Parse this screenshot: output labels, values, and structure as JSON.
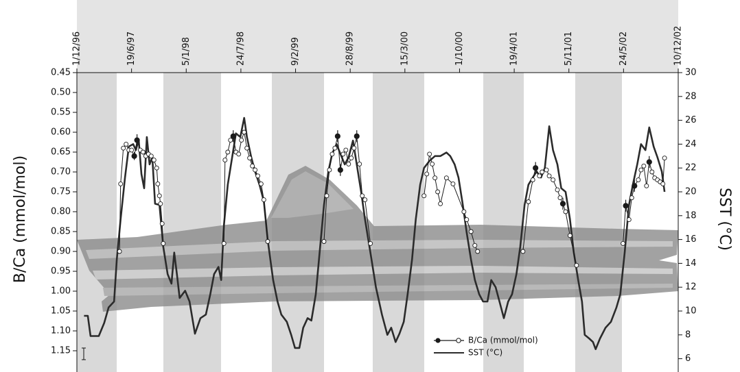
{
  "chart_data": {
    "type": "line",
    "x_axis_position": "top",
    "xlim": [
      0,
      11
    ],
    "xticks": [
      {
        "value": 0,
        "label": "1/12/96"
      },
      {
        "value": 1,
        "label": "19/6/97"
      },
      {
        "value": 2,
        "label": "5/1/98"
      },
      {
        "value": 3,
        "label": "24/7/98"
      },
      {
        "value": 4,
        "label": "9/2/99"
      },
      {
        "value": 5,
        "label": "28/8/99"
      },
      {
        "value": 6,
        "label": "15/3/00"
      },
      {
        "value": 7,
        "label": "1/10/00"
      },
      {
        "value": 8,
        "label": "19/4/01"
      },
      {
        "value": 9,
        "label": "5/11/01"
      },
      {
        "value": 10,
        "label": "24/5/02"
      },
      {
        "value": 11,
        "label": "10/12/02"
      }
    ],
    "ylabel": "B/Ca (mmol/mol)",
    "ylim": [
      1.2,
      0.45
    ],
    "yticks": [
      0.45,
      {
        "value": 0.5,
        "label": "0.50"
      },
      0.55,
      {
        "value": 0.6,
        "label": "0.60"
      },
      0.65,
      {
        "value": 0.7,
        "label": "0.70"
      },
      0.75,
      {
        "value": 0.8,
        "label": "0.80"
      },
      0.85,
      {
        "value": 0.9,
        "label": "0.90"
      },
      0.95,
      {
        "value": 1.0,
        "label": "1.00"
      },
      1.05,
      {
        "value": 1.1,
        "label": "1.10"
      },
      1.15
    ],
    "y2label": "SST (°C)",
    "y2lim": [
      5,
      30
    ],
    "y2ticks": [
      6,
      8,
      10,
      12,
      14,
      16,
      18,
      20,
      22,
      24,
      26,
      28,
      30
    ],
    "legend": "lower center",
    "series": [
      {
        "name": "B/Ca (mmol/mol)",
        "color": "#1a1a1a",
        "marker": "circle",
        "x": [
          0.78,
          0.8,
          0.85,
          0.9,
          0.95,
          1.0,
          1.05,
          1.1,
          1.16,
          1.21,
          1.26,
          1.31,
          1.36,
          1.41,
          1.46,
          1.48,
          1.51,
          1.53,
          1.56,
          1.58,
          null,
          2.69,
          2.71,
          2.76,
          2.81,
          2.86,
          2.91,
          2.96,
          3.01,
          3.06,
          3.11,
          3.16,
          3.21,
          3.26,
          3.31,
          3.37,
          3.42,
          3.49,
          null,
          4.52,
          4.57,
          4.62,
          4.67,
          4.72,
          4.77,
          4.82,
          4.87,
          4.92,
          4.97,
          5.02,
          5.07,
          5.12,
          5.17,
          5.22,
          5.27,
          5.37,
          null,
          6.35,
          6.4,
          6.45,
          6.5,
          6.55,
          6.6,
          6.65,
          6.76,
          6.88,
          7.08,
          7.13,
          7.21,
          7.28,
          7.33,
          null,
          8.16,
          8.26,
          8.34,
          8.39,
          8.46,
          8.51,
          8.59,
          8.64,
          8.71,
          8.79,
          8.84,
          8.89,
          8.94,
          9.02,
          9.14,
          null,
          9.99,
          10.04,
          10.1,
          10.15,
          10.2,
          10.27,
          10.32,
          10.37,
          10.42,
          10.47,
          10.52,
          10.57,
          10.62,
          10.67,
          10.72,
          10.75
        ],
        "values": [
          0.9,
          0.73,
          0.64,
          0.63,
          0.645,
          0.645,
          0.66,
          0.62,
          0.645,
          0.65,
          0.66,
          0.655,
          0.66,
          0.67,
          0.69,
          0.73,
          0.76,
          0.78,
          0.83,
          0.88,
          null,
          0.88,
          0.67,
          0.65,
          0.62,
          0.61,
          0.65,
          0.655,
          0.62,
          0.6,
          0.64,
          0.665,
          0.685,
          0.695,
          0.71,
          0.73,
          0.77,
          0.875,
          null,
          0.875,
          0.76,
          0.695,
          0.655,
          0.64,
          0.61,
          0.695,
          0.655,
          0.645,
          0.68,
          0.665,
          0.64,
          0.61,
          0.68,
          0.76,
          0.77,
          0.88,
          null,
          0.76,
          0.705,
          0.655,
          0.68,
          0.715,
          0.75,
          0.78,
          0.715,
          0.73,
          0.8,
          0.82,
          0.85,
          0.885,
          0.9,
          null,
          0.9,
          0.775,
          0.72,
          0.69,
          0.71,
          0.7,
          0.695,
          0.71,
          0.72,
          0.745,
          0.765,
          0.78,
          0.8,
          0.86,
          0.935,
          null,
          0.88,
          0.785,
          0.82,
          0.765,
          0.735,
          0.72,
          0.695,
          0.685,
          0.735,
          0.675,
          0.7,
          0.715,
          0.72,
          0.725,
          0.73,
          0.665
        ],
        "errors": [
          null,
          null,
          null,
          null,
          null,
          null,
          0.01,
          0.015,
          null,
          null,
          null,
          null,
          null,
          null,
          null,
          null,
          null,
          null,
          null,
          null,
          null,
          null,
          null,
          null,
          null,
          0.015,
          null,
          null,
          null,
          null,
          null,
          null,
          null,
          null,
          null,
          null,
          null,
          null,
          null,
          null,
          null,
          null,
          null,
          null,
          0.015,
          0.015,
          null,
          null,
          null,
          null,
          null,
          0.015,
          null,
          null,
          null,
          null,
          null,
          null,
          null,
          null,
          null,
          null,
          null,
          null,
          null,
          null,
          null,
          null,
          null,
          null,
          null,
          null,
          null,
          null,
          null,
          0.015,
          null,
          null,
          null,
          null,
          null,
          null,
          null,
          0.015,
          null,
          null,
          null,
          null,
          null,
          0.015,
          null,
          null,
          0.015,
          null,
          null,
          null,
          null,
          0.015,
          null,
          null,
          null,
          null,
          null,
          null
        ]
      },
      {
        "name": "SST (°C)",
        "color": "#2b2b2b",
        "axis": "y2",
        "x": [
          0.13,
          0.2,
          0.25,
          0.4,
          0.5,
          0.58,
          0.68,
          0.73,
          0.8,
          0.88,
          0.95,
          1.03,
          1.08,
          1.13,
          1.18,
          1.23,
          1.28,
          1.33,
          1.38,
          1.43,
          1.51,
          1.58,
          1.66,
          1.73,
          1.78,
          1.83,
          1.88,
          1.98,
          2.06,
          2.16,
          2.26,
          2.36,
          2.44,
          2.51,
          2.59,
          2.64,
          2.69,
          2.76,
          2.84,
          2.91,
          2.99,
          3.06,
          3.11,
          3.19,
          3.26,
          3.34,
          3.42,
          3.49,
          3.59,
          3.67,
          3.74,
          3.84,
          3.92,
          3.99,
          4.07,
          4.14,
          4.22,
          4.29,
          4.37,
          4.44,
          4.52,
          4.6,
          4.67,
          4.75,
          4.82,
          4.9,
          4.97,
          5.05,
          5.12,
          5.2,
          5.27,
          5.37,
          5.47,
          5.58,
          5.68,
          5.75,
          5.83,
          5.9,
          5.98,
          6.05,
          6.13,
          6.2,
          6.28,
          6.35,
          6.45,
          6.55,
          6.65,
          6.76,
          6.83,
          6.91,
          6.98,
          7.06,
          7.13,
          7.21,
          7.28,
          7.36,
          7.43,
          7.51,
          7.58,
          7.66,
          7.73,
          7.81,
          7.89,
          7.96,
          8.04,
          8.11,
          8.19,
          8.26,
          8.34,
          8.41,
          8.49,
          8.56,
          8.64,
          8.71,
          8.79,
          8.86,
          8.94,
          9.02,
          9.09,
          9.17,
          9.24,
          9.29,
          9.37,
          9.44,
          9.49,
          9.57,
          9.67,
          9.77,
          9.87,
          9.94,
          10.02,
          10.1,
          10.17,
          10.25,
          10.32,
          10.4,
          10.47,
          10.55,
          10.62,
          10.7,
          10.75
        ],
        "values": [
          9.6,
          9.6,
          7.9,
          7.9,
          9.0,
          10.3,
          10.8,
          14.3,
          17.7,
          21.2,
          23.8,
          24.0,
          23.5,
          24.4,
          21.5,
          20.3,
          24.6,
          22.3,
          22.9,
          19.0,
          18.9,
          15.4,
          13.1,
          12.3,
          14.9,
          13.1,
          11.1,
          11.7,
          10.8,
          8.1,
          9.4,
          9.7,
          11.4,
          13.1,
          13.7,
          12.6,
          17.2,
          20.6,
          22.9,
          24.9,
          24.6,
          26.2,
          24.6,
          22.9,
          21.7,
          20.6,
          19.2,
          16.0,
          12.6,
          10.8,
          9.7,
          9.1,
          8.0,
          6.9,
          6.9,
          8.6,
          9.4,
          9.2,
          11.4,
          14.9,
          18.9,
          21.7,
          23.2,
          24.0,
          23.2,
          22.3,
          22.9,
          24.3,
          22.3,
          20.0,
          17.7,
          14.9,
          12.0,
          9.7,
          8.0,
          8.6,
          7.4,
          8.1,
          9.1,
          11.4,
          14.3,
          17.7,
          20.6,
          22.0,
          22.6,
          23.0,
          23.0,
          23.3,
          23.0,
          22.3,
          21.2,
          18.9,
          16.6,
          14.3,
          12.6,
          11.4,
          10.8,
          10.8,
          12.6,
          12.0,
          10.8,
          9.4,
          10.8,
          11.4,
          13.1,
          15.4,
          18.9,
          20.6,
          21.2,
          21.7,
          21.2,
          22.0,
          25.5,
          23.5,
          22.3,
          20.3,
          20.0,
          17.7,
          14.9,
          12.6,
          10.8,
          8.0,
          7.7,
          7.4,
          6.8,
          7.7,
          8.6,
          9.1,
          10.3,
          11.4,
          14.9,
          18.9,
          20.6,
          22.3,
          24.0,
          23.5,
          25.4,
          23.8,
          22.9,
          21.7,
          20.0
        ]
      }
    ]
  }
}
